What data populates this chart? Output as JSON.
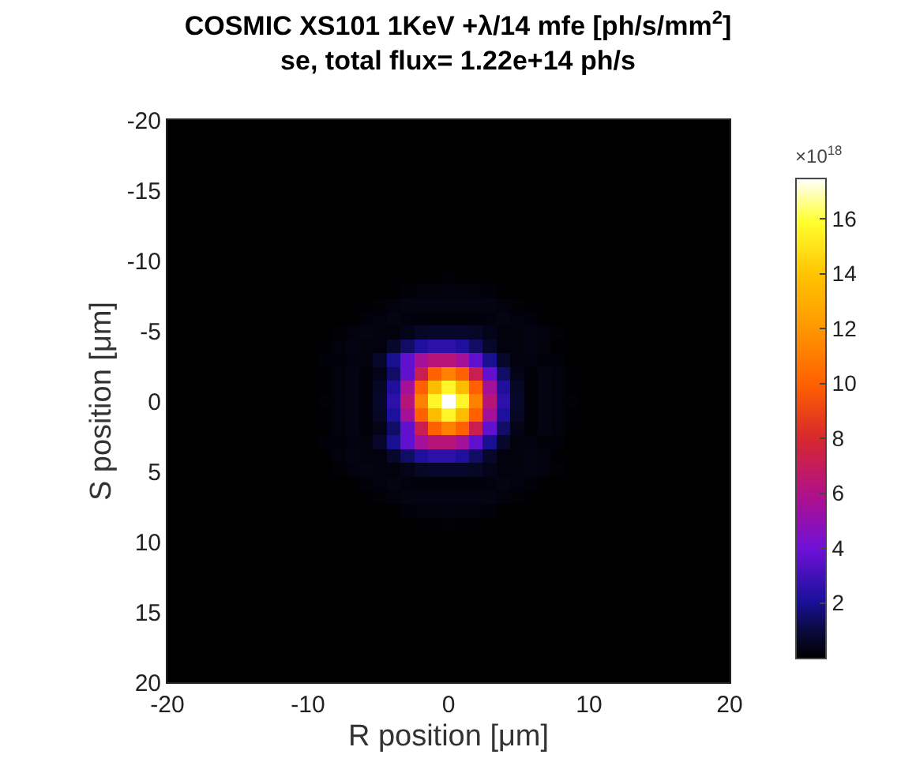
{
  "chart_data": {
    "type": "heatmap",
    "title": "COSMIC XS101 1KeV +λ/14 mfe [ph/s/mm$^{2}$]",
    "subtitle": "se, total flux= 1.22e+14 ph/s",
    "xlabel": "R position [μm]",
    "ylabel": "S position [μm]",
    "clabel": "×10$^{18}$",
    "xlim": [
      -20,
      20
    ],
    "ylim": [
      20,
      -20
    ],
    "xticks": [
      -20,
      -10,
      0,
      10,
      20
    ],
    "yticks": [
      20,
      15,
      10,
      5,
      0,
      -5,
      -10,
      -15,
      -20
    ],
    "clim": [
      0,
      17.5
    ],
    "cticks": [
      2,
      4,
      6,
      8,
      10,
      12,
      14,
      16
    ],
    "cells": [
      [
        0,
        0,
        0,
        0,
        0,
        0,
        0,
        0,
        0,
        0,
        0,
        0,
        0,
        0,
        0,
        0,
        0,
        0,
        0,
        0,
        0,
        0,
        0,
        0,
        0,
        0,
        0,
        0,
        0,
        0,
        0,
        0,
        0,
        0,
        0,
        0,
        0,
        0,
        0,
        0,
        0
      ],
      [
        0,
        0,
        0,
        0,
        0,
        0,
        0,
        0,
        0,
        0,
        0,
        0,
        0,
        0,
        0,
        0,
        0,
        0,
        0,
        0,
        0,
        0,
        0,
        0,
        0,
        0,
        0,
        0,
        0,
        0,
        0,
        0,
        0,
        0,
        0,
        0,
        0,
        0,
        0,
        0,
        0
      ],
      [
        0,
        0,
        0,
        0,
        0,
        0,
        0,
        0,
        0,
        0,
        0,
        0,
        0,
        0,
        0,
        0,
        0,
        0,
        0,
        0,
        0,
        0,
        0,
        0,
        0,
        0,
        0,
        0,
        0,
        0,
        0,
        0,
        0,
        0,
        0,
        0,
        0,
        0,
        0,
        0,
        0
      ],
      [
        0,
        0,
        0,
        0,
        0,
        0,
        0,
        0,
        0,
        0,
        0,
        0,
        0,
        0,
        0,
        0,
        0,
        0,
        0,
        0,
        0,
        0,
        0,
        0,
        0,
        0,
        0,
        0,
        0,
        0,
        0,
        0,
        0,
        0,
        0,
        0,
        0,
        0,
        0,
        0,
        0
      ],
      [
        0,
        0,
        0,
        0,
        0,
        0,
        0,
        0,
        0,
        0,
        0,
        0,
        0,
        0,
        0,
        0,
        0,
        0,
        0,
        0,
        0,
        0,
        0,
        0,
        0,
        0,
        0,
        0,
        0,
        0,
        0,
        0,
        0,
        0,
        0,
        0,
        0,
        0,
        0,
        0,
        0
      ],
      [
        0,
        0,
        0,
        0,
        0,
        0,
        0,
        0,
        0,
        0,
        0,
        0,
        0,
        0,
        0,
        0,
        0,
        0,
        0,
        0,
        0,
        0,
        0,
        0,
        0,
        0,
        0,
        0,
        0,
        0,
        0,
        0,
        0,
        0,
        0,
        0,
        0,
        0,
        0,
        0,
        0
      ],
      [
        0,
        0,
        0,
        0,
        0,
        0,
        0,
        0,
        0,
        0,
        0,
        0,
        0,
        0,
        0,
        0,
        0,
        0,
        0,
        0,
        0,
        0,
        0,
        0,
        0,
        0,
        0,
        0,
        0,
        0,
        0,
        0,
        0,
        0,
        0,
        0,
        0,
        0,
        0,
        0,
        0
      ],
      [
        0,
        0,
        0,
        0,
        0,
        0,
        0,
        0,
        0,
        0,
        0,
        0,
        0,
        0,
        0,
        0,
        0,
        0,
        0,
        0,
        0,
        0,
        0,
        0,
        0,
        0,
        0,
        0,
        0,
        0,
        0,
        0,
        0,
        0,
        0,
        0,
        0,
        0,
        0,
        0,
        0
      ],
      [
        0,
        0,
        0,
        0,
        0,
        0,
        0,
        0,
        0,
        0,
        0,
        0,
        0,
        0,
        0,
        0,
        0,
        0,
        0,
        0,
        0,
        0,
        0,
        0,
        0,
        0,
        0,
        0,
        0,
        0,
        0,
        0,
        0,
        0,
        0,
        0,
        0,
        0,
        0,
        0,
        0
      ],
      [
        0,
        0,
        0,
        0,
        0,
        0,
        0,
        0,
        0,
        0,
        0,
        0,
        0,
        0,
        0,
        0,
        0,
        0,
        0,
        0,
        0,
        0,
        0,
        0,
        0,
        0,
        0,
        0,
        0,
        0,
        0,
        0,
        0,
        0,
        0,
        0,
        0,
        0,
        0,
        0,
        0
      ],
      [
        0,
        0,
        0,
        0,
        0,
        0,
        0,
        0,
        0,
        0,
        0,
        0,
        0,
        0,
        0,
        0,
        0,
        0,
        0,
        0,
        0,
        0,
        0,
        0,
        0,
        0,
        0,
        0,
        0,
        0,
        0,
        0,
        0,
        0,
        0,
        0,
        0,
        0,
        0,
        0,
        0
      ],
      [
        0,
        0,
        0,
        0,
        0,
        0,
        0,
        0,
        0,
        0,
        0,
        0,
        0,
        0,
        0,
        0,
        0,
        0,
        0.05,
        0.05,
        0.1,
        0.05,
        0.05,
        0,
        0,
        0,
        0,
        0,
        0,
        0,
        0,
        0,
        0,
        0,
        0,
        0,
        0,
        0,
        0,
        0,
        0
      ],
      [
        0,
        0,
        0,
        0,
        0,
        0,
        0,
        0,
        0,
        0,
        0,
        0,
        0,
        0,
        0,
        0,
        0.05,
        0.15,
        0.2,
        0.2,
        0.25,
        0.2,
        0.2,
        0.15,
        0.05,
        0,
        0,
        0,
        0,
        0,
        0,
        0,
        0,
        0,
        0,
        0,
        0,
        0,
        0,
        0,
        0
      ],
      [
        0,
        0,
        0,
        0,
        0,
        0,
        0,
        0,
        0,
        0,
        0,
        0,
        0,
        0,
        0.05,
        0.1,
        0.2,
        0.3,
        0.3,
        0.3,
        0.3,
        0.3,
        0.3,
        0.3,
        0.2,
        0.1,
        0.05,
        0,
        0,
        0,
        0,
        0,
        0,
        0,
        0,
        0,
        0,
        0,
        0,
        0,
        0
      ],
      [
        0,
        0,
        0,
        0,
        0,
        0,
        0,
        0,
        0,
        0,
        0,
        0,
        0,
        0.05,
        0.15,
        0.25,
        0.3,
        0.25,
        0.15,
        0.15,
        0.15,
        0.15,
        0.15,
        0.25,
        0.3,
        0.25,
        0.15,
        0.05,
        0,
        0,
        0,
        0,
        0,
        0,
        0,
        0,
        0,
        0,
        0,
        0,
        0
      ],
      [
        0,
        0,
        0,
        0,
        0,
        0,
        0,
        0,
        0,
        0,
        0,
        0,
        0.1,
        0.25,
        0.3,
        0.2,
        0.2,
        0.4,
        0.6,
        0.7,
        0.7,
        0.7,
        0.6,
        0.4,
        0.2,
        0.2,
        0.3,
        0.25,
        0.1,
        0,
        0,
        0,
        0,
        0,
        0,
        0,
        0,
        0,
        0,
        0,
        0
      ],
      [
        0,
        0,
        0,
        0,
        0,
        0,
        0,
        0,
        0,
        0,
        0,
        0.05,
        0.2,
        0.3,
        0.2,
        0.25,
        0.7,
        1.5,
        2.2,
        2.5,
        2.5,
        2.2,
        1.5,
        0.7,
        0.25,
        0.2,
        0.3,
        0.2,
        0.05,
        0,
        0,
        0,
        0,
        0,
        0,
        0,
        0,
        0,
        0,
        0,
        0
      ],
      [
        0,
        0,
        0,
        0,
        0,
        0,
        0,
        0,
        0,
        0,
        0,
        0.15,
        0.15,
        0.25,
        0.2,
        0.7,
        2,
        3.7,
        5.6,
        6.3,
        6.3,
        5.6,
        3.7,
        2,
        0.7,
        0.2,
        0.25,
        0.15,
        0.15,
        0,
        0,
        0,
        0,
        0,
        0,
        0,
        0,
        0,
        0,
        0,
        0
      ],
      [
        0,
        0,
        0,
        0,
        0,
        0,
        0,
        0,
        0,
        0,
        0,
        0.05,
        0.2,
        0.3,
        0.15,
        0.4,
        1.5,
        3.7,
        7.2,
        10,
        11.2,
        10,
        7.2,
        3.7,
        1.5,
        0.4,
        0.15,
        0.3,
        0.2,
        0.05,
        0,
        0,
        0,
        0,
        0,
        0,
        0,
        0,
        0,
        0,
        0
      ],
      [
        0,
        0,
        0,
        0,
        0,
        0,
        0,
        0,
        0,
        0,
        0,
        0.05,
        0.2,
        0.3,
        0.15,
        0.6,
        2.2,
        5.6,
        10,
        13.7,
        15.6,
        13.7,
        10,
        5.6,
        2.2,
        0.6,
        0.15,
        0.3,
        0.2,
        0.05,
        0,
        0,
        0,
        0,
        0,
        0,
        0,
        0,
        0,
        0,
        0
      ],
      [
        0,
        0,
        0,
        0,
        0,
        0,
        0,
        0,
        0,
        0,
        0,
        0.1,
        0.25,
        0.3,
        0.15,
        0.7,
        2.5,
        6.3,
        11.2,
        15.6,
        17.5,
        15.6,
        11.2,
        6.3,
        2.5,
        0.7,
        0.15,
        0.3,
        0.25,
        0.1,
        0,
        0,
        0,
        0,
        0,
        0,
        0,
        0,
        0,
        0,
        0
      ],
      [
        0,
        0,
        0,
        0,
        0,
        0,
        0,
        0,
        0,
        0,
        0,
        0.05,
        0.2,
        0.3,
        0.15,
        0.6,
        2.2,
        5.6,
        10,
        13.7,
        15.6,
        13.7,
        10,
        5.6,
        2.2,
        0.6,
        0.15,
        0.3,
        0.2,
        0.05,
        0,
        0,
        0,
        0,
        0,
        0,
        0,
        0,
        0,
        0,
        0
      ],
      [
        0,
        0,
        0,
        0,
        0,
        0,
        0,
        0,
        0,
        0,
        0,
        0.05,
        0.2,
        0.3,
        0.15,
        0.4,
        1.5,
        3.7,
        7.2,
        10,
        11.2,
        10,
        7.2,
        3.7,
        1.5,
        0.4,
        0.15,
        0.3,
        0.2,
        0.05,
        0,
        0,
        0,
        0,
        0,
        0,
        0,
        0,
        0,
        0,
        0
      ],
      [
        0,
        0,
        0,
        0,
        0,
        0,
        0,
        0,
        0,
        0,
        0,
        0.15,
        0.15,
        0.25,
        0.2,
        0.7,
        2,
        3.7,
        5.6,
        6.3,
        6.3,
        5.6,
        3.7,
        2,
        0.7,
        0.2,
        0.25,
        0.15,
        0.15,
        0,
        0,
        0,
        0,
        0,
        0,
        0,
        0,
        0,
        0,
        0,
        0
      ],
      [
        0,
        0,
        0,
        0,
        0,
        0,
        0,
        0,
        0,
        0,
        0,
        0.05,
        0.2,
        0.3,
        0.2,
        0.25,
        0.7,
        1.5,
        2.2,
        2.5,
        2.5,
        2.2,
        1.5,
        0.7,
        0.25,
        0.2,
        0.3,
        0.2,
        0.05,
        0,
        0,
        0,
        0,
        0,
        0,
        0,
        0,
        0,
        0,
        0,
        0
      ],
      [
        0,
        0,
        0,
        0,
        0,
        0,
        0,
        0,
        0,
        0,
        0,
        0,
        0.1,
        0.25,
        0.3,
        0.2,
        0.2,
        0.4,
        0.6,
        0.7,
        0.7,
        0.7,
        0.6,
        0.4,
        0.2,
        0.2,
        0.3,
        0.25,
        0.1,
        0,
        0,
        0,
        0,
        0,
        0,
        0,
        0,
        0,
        0,
        0,
        0
      ],
      [
        0,
        0,
        0,
        0,
        0,
        0,
        0,
        0,
        0,
        0,
        0,
        0,
        0,
        0.05,
        0.15,
        0.25,
        0.3,
        0.25,
        0.15,
        0.15,
        0.15,
        0.15,
        0.15,
        0.25,
        0.3,
        0.25,
        0.15,
        0.05,
        0,
        0,
        0,
        0,
        0,
        0,
        0,
        0,
        0,
        0,
        0,
        0,
        0
      ],
      [
        0,
        0,
        0,
        0,
        0,
        0,
        0,
        0,
        0,
        0,
        0,
        0,
        0,
        0,
        0.05,
        0.1,
        0.2,
        0.3,
        0.3,
        0.3,
        0.3,
        0.3,
        0.3,
        0.3,
        0.2,
        0.1,
        0.05,
        0,
        0,
        0,
        0,
        0,
        0,
        0,
        0,
        0,
        0,
        0,
        0,
        0,
        0
      ],
      [
        0,
        0,
        0,
        0,
        0,
        0,
        0,
        0,
        0,
        0,
        0,
        0,
        0,
        0,
        0,
        0,
        0.05,
        0.15,
        0.2,
        0.2,
        0.25,
        0.2,
        0.2,
        0.15,
        0.05,
        0,
        0,
        0,
        0,
        0,
        0,
        0,
        0,
        0,
        0,
        0,
        0,
        0,
        0,
        0,
        0
      ],
      [
        0,
        0,
        0,
        0,
        0,
        0,
        0,
        0,
        0,
        0,
        0,
        0,
        0,
        0,
        0,
        0,
        0,
        0,
        0.05,
        0.05,
        0.1,
        0.05,
        0.05,
        0,
        0,
        0,
        0,
        0,
        0,
        0,
        0,
        0,
        0,
        0,
        0,
        0,
        0,
        0,
        0,
        0,
        0
      ],
      [
        0,
        0,
        0,
        0,
        0,
        0,
        0,
        0,
        0,
        0,
        0,
        0,
        0,
        0,
        0,
        0,
        0,
        0,
        0,
        0,
        0,
        0,
        0,
        0,
        0,
        0,
        0,
        0,
        0,
        0,
        0,
        0,
        0,
        0,
        0,
        0,
        0,
        0,
        0,
        0,
        0
      ],
      [
        0,
        0,
        0,
        0,
        0,
        0,
        0,
        0,
        0,
        0,
        0,
        0,
        0,
        0,
        0,
        0,
        0,
        0,
        0,
        0,
        0,
        0,
        0,
        0,
        0,
        0,
        0,
        0,
        0,
        0,
        0,
        0,
        0,
        0,
        0,
        0,
        0,
        0,
        0,
        0,
        0
      ],
      [
        0,
        0,
        0,
        0,
        0,
        0,
        0,
        0,
        0,
        0,
        0,
        0,
        0,
        0,
        0,
        0,
        0,
        0,
        0,
        0,
        0,
        0,
        0,
        0,
        0,
        0,
        0,
        0,
        0,
        0,
        0,
        0,
        0,
        0,
        0,
        0,
        0,
        0,
        0,
        0,
        0
      ],
      [
        0,
        0,
        0,
        0,
        0,
        0,
        0,
        0,
        0,
        0,
        0,
        0,
        0,
        0,
        0,
        0,
        0,
        0,
        0,
        0,
        0,
        0,
        0,
        0,
        0,
        0,
        0,
        0,
        0,
        0,
        0,
        0,
        0,
        0,
        0,
        0,
        0,
        0,
        0,
        0,
        0
      ],
      [
        0,
        0,
        0,
        0,
        0,
        0,
        0,
        0,
        0,
        0,
        0,
        0,
        0,
        0,
        0,
        0,
        0,
        0,
        0,
        0,
        0,
        0,
        0,
        0,
        0,
        0,
        0,
        0,
        0,
        0,
        0,
        0,
        0,
        0,
        0,
        0,
        0,
        0,
        0,
        0,
        0
      ],
      [
        0,
        0,
        0,
        0,
        0,
        0,
        0,
        0,
        0,
        0,
        0,
        0,
        0,
        0,
        0,
        0,
        0,
        0,
        0,
        0,
        0,
        0,
        0,
        0,
        0,
        0,
        0,
        0,
        0,
        0,
        0,
        0,
        0,
        0,
        0,
        0,
        0,
        0,
        0,
        0,
        0
      ],
      [
        0,
        0,
        0,
        0,
        0,
        0,
        0,
        0,
        0,
        0,
        0,
        0,
        0,
        0,
        0,
        0,
        0,
        0,
        0,
        0,
        0,
        0,
        0,
        0,
        0,
        0,
        0,
        0,
        0,
        0,
        0,
        0,
        0,
        0,
        0,
        0,
        0,
        0,
        0,
        0,
        0
      ],
      [
        0,
        0,
        0,
        0,
        0,
        0,
        0,
        0,
        0,
        0,
        0,
        0,
        0,
        0,
        0,
        0,
        0,
        0,
        0,
        0,
        0,
        0,
        0,
        0,
        0,
        0,
        0,
        0,
        0,
        0,
        0,
        0,
        0,
        0,
        0,
        0,
        0,
        0,
        0,
        0,
        0
      ],
      [
        0,
        0,
        0,
        0,
        0,
        0,
        0,
        0,
        0,
        0,
        0,
        0,
        0,
        0,
        0,
        0,
        0,
        0,
        0,
        0,
        0,
        0,
        0,
        0,
        0,
        0,
        0,
        0,
        0,
        0,
        0,
        0,
        0,
        0,
        0,
        0,
        0,
        0,
        0,
        0,
        0
      ],
      [
        0,
        0,
        0,
        0,
        0,
        0,
        0,
        0,
        0,
        0,
        0,
        0,
        0,
        0,
        0,
        0,
        0,
        0,
        0,
        0,
        0,
        0,
        0,
        0,
        0,
        0,
        0,
        0,
        0,
        0,
        0,
        0,
        0,
        0,
        0,
        0,
        0,
        0,
        0,
        0,
        0
      ],
      [
        0,
        0,
        0,
        0,
        0,
        0,
        0,
        0,
        0,
        0,
        0,
        0,
        0,
        0,
        0,
        0,
        0,
        0,
        0,
        0,
        0,
        0,
        0,
        0,
        0,
        0,
        0,
        0,
        0,
        0,
        0,
        0,
        0,
        0,
        0,
        0,
        0,
        0,
        0,
        0,
        0
      ]
    ]
  }
}
